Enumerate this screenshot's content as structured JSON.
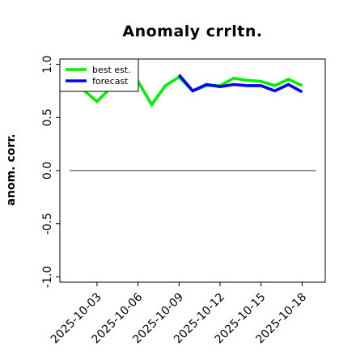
{
  "chart_data": {
    "type": "line",
    "title": "Anomaly crrltn.",
    "xlabel": "",
    "ylabel": "anom. corr.",
    "ylim": [
      -1.05,
      1.05
    ],
    "y_ticks": [
      "-1.0",
      "-0.5",
      "0.0",
      "0.5",
      "1.0"
    ],
    "y_tick_values": [
      -1.0,
      -0.5,
      0.0,
      0.5,
      1.0
    ],
    "x_ticks": [
      "2025-10-03",
      "2025-10-06",
      "2025-10-09",
      "2025-10-12",
      "2025-10-15",
      "2025-10-18"
    ],
    "highlighted_x_tick": "2025-10-09",
    "highlight_color": "#228B22",
    "x_start": "2025-10-01",
    "x_end": "2025-10-19",
    "zero_line": true,
    "grid": false,
    "legend_position": "top-left",
    "series": [
      {
        "name": "best est.",
        "color": "#00ee00",
        "x": [
          "2025-10-01",
          "2025-10-02",
          "2025-10-03",
          "2025-10-04",
          "2025-10-05",
          "2025-10-06",
          "2025-10-07",
          "2025-10-08",
          "2025-10-09",
          "2025-10-10",
          "2025-10-11",
          "2025-10-12",
          "2025-10-13",
          "2025-10-14",
          "2025-10-15",
          "2025-10-16",
          "2025-10-17",
          "2025-10-18"
        ],
        "values": [
          0.89,
          0.76,
          0.65,
          0.78,
          0.85,
          0.84,
          0.62,
          0.8,
          0.88,
          0.75,
          0.8,
          0.8,
          0.87,
          0.85,
          0.84,
          0.8,
          0.86,
          0.8
        ]
      },
      {
        "name": "forecast",
        "color": "#0000ee",
        "x": [
          "2025-10-09",
          "2025-10-10",
          "2025-10-11",
          "2025-10-12",
          "2025-10-13",
          "2025-10-14",
          "2025-10-15",
          "2025-10-16",
          "2025-10-17",
          "2025-10-18"
        ],
        "values": [
          0.9,
          0.75,
          0.81,
          0.79,
          0.81,
          0.8,
          0.8,
          0.75,
          0.81,
          0.74
        ]
      }
    ]
  }
}
